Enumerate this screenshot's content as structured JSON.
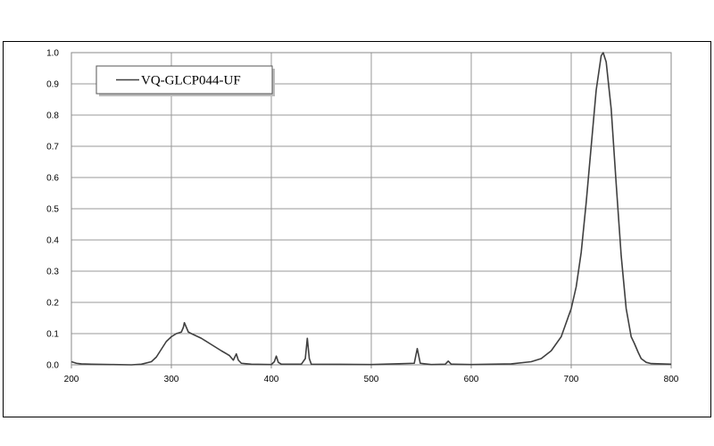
{
  "chart_data": {
    "type": "line",
    "x": [
      200,
      205,
      210,
      220,
      240,
      260,
      270,
      280,
      285,
      290,
      295,
      300,
      305,
      310,
      312,
      313,
      315,
      317,
      320,
      330,
      340,
      350,
      358,
      362,
      365,
      367,
      370,
      380,
      400,
      403,
      405,
      407,
      410,
      430,
      434,
      436,
      438,
      440,
      500,
      543,
      546,
      549,
      560,
      574,
      577,
      580,
      600,
      640,
      660,
      670,
      680,
      690,
      700,
      705,
      710,
      715,
      720,
      725,
      730,
      732,
      735,
      740,
      745,
      750,
      755,
      760,
      763,
      767,
      770,
      775,
      780,
      790,
      800
    ],
    "series": [
      {
        "name": "VQ-GLCP044-UF",
        "color": "#404040",
        "values": [
          0.01,
          0.005,
          0.003,
          0.002,
          0.001,
          0,
          0.002,
          0.01,
          0.025,
          0.05,
          0.075,
          0.09,
          0.1,
          0.105,
          0.12,
          0.135,
          0.12,
          0.105,
          0.1,
          0.085,
          0.065,
          0.045,
          0.03,
          0.015,
          0.035,
          0.015,
          0.005,
          0.002,
          0.001,
          0.01,
          0.028,
          0.008,
          0.002,
          0.002,
          0.02,
          0.085,
          0.02,
          0.002,
          0.001,
          0.005,
          0.052,
          0.005,
          0.001,
          0.002,
          0.012,
          0.002,
          0.001,
          0.003,
          0.01,
          0.02,
          0.045,
          0.09,
          0.18,
          0.25,
          0.36,
          0.52,
          0.7,
          0.88,
          0.99,
          1.0,
          0.97,
          0.82,
          0.58,
          0.35,
          0.18,
          0.09,
          0.07,
          0.04,
          0.02,
          0.008,
          0.004,
          0.003,
          0.002
        ]
      }
    ],
    "xlim": [
      200,
      800
    ],
    "xticks": [
      200,
      300,
      400,
      500,
      600,
      700,
      800
    ],
    "ylim": [
      0,
      1
    ],
    "yticks": [
      {
        "value": 0,
        "label": "0.0"
      },
      0.1,
      0.2,
      0.3,
      0.4,
      0.5,
      0.6,
      0.7,
      0.8,
      0.9,
      {
        "value": 1,
        "label": "1.0"
      }
    ],
    "grid": true,
    "legend": "upper left"
  }
}
